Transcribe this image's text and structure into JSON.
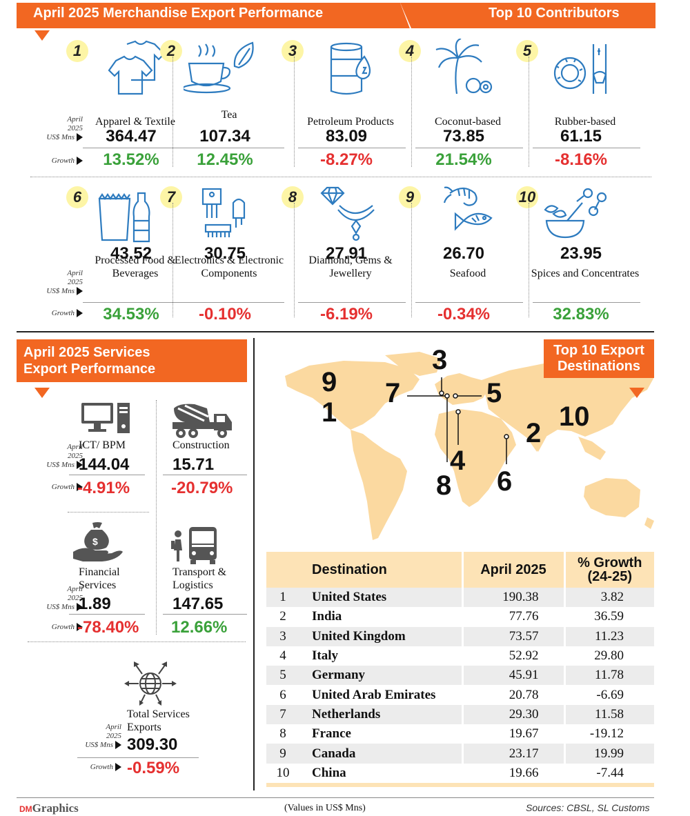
{
  "header": {
    "title": "April 2025 Merchandise Export Performance",
    "subtitle": "Top 10 Contributors"
  },
  "row_labels": {
    "value_label_line1": "April",
    "value_label_line2": "2025",
    "value_label_line3": "US$ Mns",
    "growth_label": "Growth"
  },
  "merchandise": [
    {
      "rank": "1",
      "name": "Apparel & Textile",
      "value": "364.47",
      "growth": "13.52%",
      "icon": "tshirt-icon"
    },
    {
      "rank": "2",
      "name": "Tea",
      "value": "107.34",
      "growth": "12.45%",
      "icon": "tea-cup-icon"
    },
    {
      "rank": "3",
      "name": "Petroleum Products",
      "value": "83.09",
      "growth": "-8.27%",
      "icon": "oil-barrel-icon"
    },
    {
      "rank": "4",
      "name": "Coconut-based",
      "value": "73.85",
      "growth": "21.54%",
      "icon": "coconut-palm-icon"
    },
    {
      "rank": "5",
      "name": "Rubber-based",
      "value": "61.15",
      "growth": "-8.16%",
      "icon": "rubber-tire-icon"
    },
    {
      "rank": "6",
      "name": "Processed Food & Beverages",
      "value": "43.52",
      "growth": "34.53%",
      "icon": "food-beverage-icon"
    },
    {
      "rank": "7",
      "name": "Electronics & Electronic Components",
      "value": "30.75",
      "growth": "-0.10%",
      "icon": "electronic-component-icon"
    },
    {
      "rank": "8",
      "name": "Diamond, Gems & Jewellery",
      "value": "27.91",
      "growth": "-6.19%",
      "icon": "diamond-necklace-icon"
    },
    {
      "rank": "9",
      "name": "Seafood",
      "value": "26.70",
      "growth": "-0.34%",
      "icon": "shrimp-fish-icon"
    },
    {
      "rank": "10",
      "name": "Spices and Concentrates",
      "value": "23.95",
      "growth": "32.83%",
      "icon": "spices-icon"
    }
  ],
  "services": {
    "title_line1": "April 2025 Services",
    "title_line2": "Export Performance",
    "items": [
      {
        "name": "ICT/ BPM",
        "value": "144.04",
        "growth": "-4.91%",
        "icon": "computer-icon"
      },
      {
        "name": "Construction",
        "value": "15.71",
        "growth": "-20.79%",
        "icon": "cement-truck-icon"
      },
      {
        "name": "Financial Services",
        "value": "1.89",
        "growth": "-78.40%",
        "icon": "money-hand-icon"
      },
      {
        "name": "Transport & Logistics",
        "value": "147.65",
        "growth": "12.66%",
        "icon": "bus-traveller-icon"
      }
    ],
    "total": {
      "name": "Total Services Exports",
      "value": "309.30",
      "growth": "-0.59%",
      "icon": "globe-arrows-icon"
    }
  },
  "destinations": {
    "title_line1": "Top 10 Export",
    "title_line2": "Destinations",
    "map_numbers": [
      "1",
      "2",
      "3",
      "4",
      "5",
      "6",
      "7",
      "8",
      "9",
      "10"
    ],
    "columns": [
      "Destination",
      "April 2025",
      "% Growth (24-25)"
    ],
    "rows": [
      {
        "rank": "1",
        "country": "United States",
        "april": "190.38",
        "growth": "3.82"
      },
      {
        "rank": "2",
        "country": "India",
        "april": "77.76",
        "growth": "36.59"
      },
      {
        "rank": "3",
        "country": "United Kingdom",
        "april": "73.57",
        "growth": "11.23"
      },
      {
        "rank": "4",
        "country": "Italy",
        "april": "52.92",
        "growth": "29.80"
      },
      {
        "rank": "5",
        "country": "Germany",
        "april": "45.91",
        "growth": "11.78"
      },
      {
        "rank": "6",
        "country": "United Arab Emirates",
        "april": "20.78",
        "growth": "-6.69"
      },
      {
        "rank": "7",
        "country": "Netherlands",
        "april": "29.30",
        "growth": "11.58"
      },
      {
        "rank": "8",
        "country": "France",
        "april": "19.67",
        "growth": "-19.12"
      },
      {
        "rank": "9",
        "country": "Canada",
        "april": "23.17",
        "growth": "19.99"
      },
      {
        "rank": "10",
        "country": "China",
        "april": "19.66",
        "growth": "-7.44"
      }
    ]
  },
  "footer": {
    "brand_prefix": "DM",
    "brand": "Graphics",
    "note": "(Values in US$ Mns)",
    "sources": "Sources: CBSL, SL Customs"
  },
  "colors": {
    "accent": "#f26722",
    "positive": "#3aa13a",
    "negative": "#e53030",
    "map": "#fbd9a0",
    "badge": "#fdf5a6",
    "icon_blue": "#2d7bbf"
  }
}
